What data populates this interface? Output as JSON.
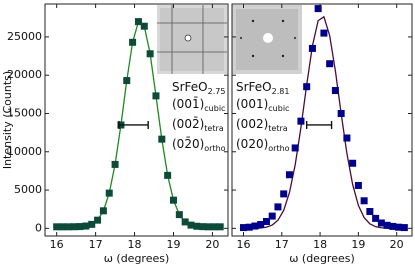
{
  "chart_data": [
    {
      "type": "scatter",
      "ylabel": "Intensity (Counts)",
      "xlabel": "ω (degrees)",
      "xlim": [
        15.7,
        20.4
      ],
      "ylim": [
        -1000,
        29300
      ],
      "xticks": [
        16,
        17,
        18,
        19,
        20
      ],
      "yticks": [
        0,
        5000,
        10000,
        15000,
        20000,
        25000
      ],
      "ytick_labels": true,
      "x": [
        16.0,
        16.15,
        16.3,
        16.45,
        16.6,
        16.75,
        16.9,
        17.05,
        17.2,
        17.35,
        17.5,
        17.65,
        17.8,
        17.95,
        18.1,
        18.25,
        18.4,
        18.55,
        18.7,
        18.85,
        19.0,
        19.15,
        19.3,
        19.45,
        19.6,
        19.75,
        19.9,
        20.05,
        20.2
      ],
      "series": [
        {
          "mode": "line",
          "color": "#1f8a1f",
          "values": [
            200,
            200,
            200,
            210,
            230,
            300,
            520,
            1070,
            2290,
            4600,
            8350,
            13500,
            19300,
            24300,
            27000,
            26400,
            22800,
            17300,
            11650,
            6920,
            3680,
            1790,
            840,
            420,
            270,
            220,
            200,
            200,
            200
          ]
        },
        {
          "mode": "markers",
          "color": "#0d4a38",
          "values": [
            200,
            200,
            200,
            210,
            230,
            300,
            520,
            1070,
            2290,
            4600,
            8350,
            13500,
            19300,
            24300,
            27000,
            26400,
            22800,
            17300,
            11650,
            6920,
            3680,
            1790,
            840,
            420,
            270,
            220,
            200,
            200,
            200
          ]
        }
      ],
      "resolution_bar": {
        "x": [
          17.6,
          18.35
        ],
        "y": 13500
      },
      "annotation": {
        "compound": {
          "text": "SrFeO",
          "sub": "2.75"
        },
        "planes": [
          {
            "text": "(001̄)",
            "sub": "cubic"
          },
          {
            "text": "(002̄)",
            "sub": "tetra"
          },
          {
            "text": "(02̄0)",
            "sub": "ortho"
          }
        ]
      }
    },
    {
      "type": "scatter",
      "xlabel": "ω (degrees)",
      "xlim": [
        15.7,
        20.4
      ],
      "ylim": [
        -1000,
        29300
      ],
      "xticks": [
        16,
        17,
        18,
        19,
        20
      ],
      "yticks": [
        0,
        5000,
        10000,
        15000,
        20000,
        25000
      ],
      "ytick_labels": false,
      "x": [
        16.0,
        16.15,
        16.3,
        16.45,
        16.6,
        16.75,
        16.9,
        17.05,
        17.2,
        17.35,
        17.5,
        17.65,
        17.8,
        17.95,
        18.1,
        18.25,
        18.4,
        18.55,
        18.7,
        18.85,
        19.0,
        19.15,
        19.3,
        19.45,
        19.6,
        19.75,
        19.9,
        20.05,
        20.2
      ],
      "series": [
        {
          "mode": "line",
          "color": "#4a0c3c",
          "values": [
            0,
            4,
            14,
            50,
            155,
            430,
            1060,
            2350,
            4670,
            8290,
            13170,
            18730,
            23830,
            27130,
            27630,
            25180,
            20550,
            14990,
            9790,
            5730,
            3000,
            1400,
            590,
            220,
            74,
            22,
            6,
            0,
            0
          ]
        },
        {
          "mode": "markers",
          "color": "#00008b",
          "values": [
            100,
            150,
            300,
            500,
            900,
            1600,
            2800,
            4500,
            7000,
            10500,
            14000,
            18500,
            23500,
            28700,
            25500,
            21500,
            18000,
            15000,
            11800,
            8500,
            5600,
            3600,
            2200,
            1300,
            700,
            400,
            250,
            150,
            100
          ]
        }
      ],
      "resolution_bar": {
        "x": [
          17.65,
          18.3
        ],
        "y": 13500
      },
      "annotation": {
        "compound": {
          "text": "SrFeO",
          "sub": "2.81"
        },
        "planes": [
          {
            "text": "(001)",
            "sub": "cubic"
          },
          {
            "text": "(002)",
            "sub": "tetra"
          },
          {
            "text": "(020)",
            "sub": "ortho"
          }
        ]
      }
    }
  ]
}
